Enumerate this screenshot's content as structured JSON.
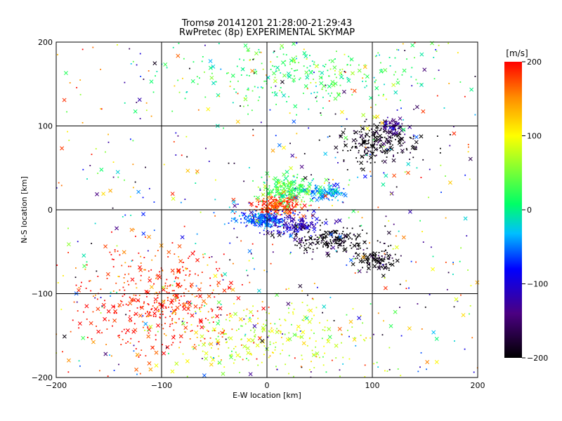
{
  "chart_data": {
    "type": "scatter",
    "title": "Tromsø 20141201 21:28:00-21:29:43",
    "subtitle": "RwPretec (8p) EXPERIMENTAL SKYMAP",
    "xlabel": "E-W location [km]",
    "ylabel": "N-S location [km]",
    "xlim": [
      -200,
      200
    ],
    "ylim": [
      -200,
      200
    ],
    "xticks": [
      -200,
      -100,
      0,
      100,
      200
    ],
    "yticks": [
      -200,
      -100,
      0,
      100,
      200
    ],
    "grid": true,
    "markers": [
      "dot",
      "x"
    ],
    "colorbar": {
      "label": "[m/s]",
      "range": [
        -200,
        200
      ],
      "ticks": [
        200,
        100,
        0,
        -100,
        -200
      ],
      "colormap": [
        "#000000",
        "#4b0082",
        "#0000ff",
        "#00bfff",
        "#00ff66",
        "#ffff00",
        "#ff8c00",
        "#ff0000"
      ]
    },
    "clusters": [
      {
        "x": 10,
        "y": 5,
        "spread_x": 20,
        "spread_y": 10,
        "velocity": 180,
        "count": 260
      },
      {
        "x": 20,
        "y": 25,
        "spread_x": 25,
        "spread_y": 12,
        "velocity": 30,
        "count": 220
      },
      {
        "x": -5,
        "y": -12,
        "spread_x": 20,
        "spread_y": 8,
        "velocity": -60,
        "count": 200
      },
      {
        "x": 25,
        "y": -18,
        "spread_x": 20,
        "spread_y": 12,
        "velocity": -110,
        "count": 160
      },
      {
        "x": 55,
        "y": 20,
        "spread_x": 15,
        "spread_y": 8,
        "velocity": -40,
        "count": 120
      },
      {
        "x": 60,
        "y": -35,
        "spread_x": 35,
        "spread_y": 15,
        "velocity": -200,
        "count": 200
      },
      {
        "x": 105,
        "y": 80,
        "spread_x": 30,
        "spread_y": 20,
        "velocity": -200,
        "count": 240
      },
      {
        "x": 120,
        "y": 100,
        "spread_x": 10,
        "spread_y": 8,
        "velocity": -130,
        "count": 60
      },
      {
        "x": 105,
        "y": -60,
        "spread_x": 15,
        "spread_y": 10,
        "velocity": -200,
        "count": 120
      },
      {
        "x": -100,
        "y": -110,
        "spread_x": 65,
        "spread_y": 50,
        "velocity": 190,
        "count": 450
      },
      {
        "x": 0,
        "y": -150,
        "spread_x": 80,
        "spread_y": 35,
        "velocity": 80,
        "count": 250
      },
      {
        "x": 30,
        "y": 160,
        "spread_x": 90,
        "spread_y": 30,
        "velocity": 20,
        "count": 260
      },
      {
        "x": 0,
        "y": 0,
        "spread_x": 190,
        "spread_y": 190,
        "velocity": 0,
        "count": 600
      }
    ]
  }
}
